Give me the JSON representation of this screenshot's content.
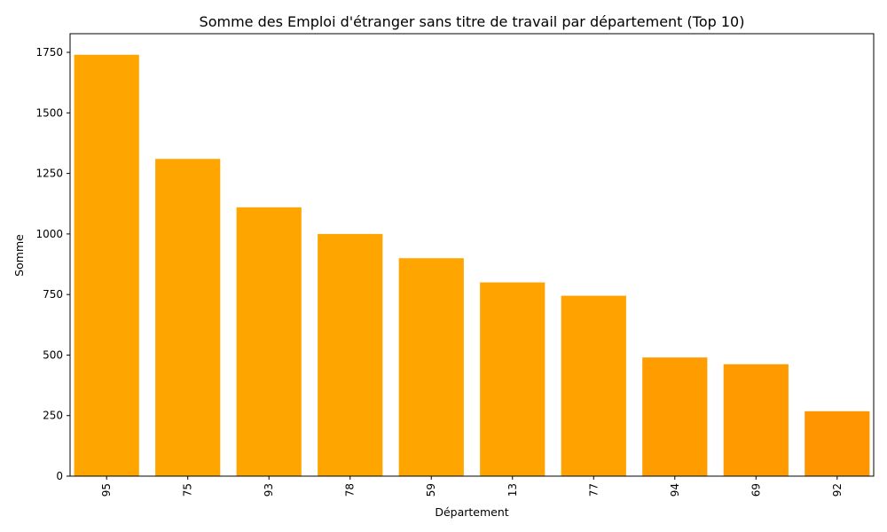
{
  "chart_data": {
    "type": "bar",
    "title": "Somme des Emploi d'étranger sans titre de travail par département (Top 10)",
    "xlabel": "Département",
    "ylabel": "Somme",
    "categories": [
      "95",
      "75",
      "93",
      "78",
      "59",
      "13",
      "77",
      "94",
      "69",
      "92"
    ],
    "values": [
      1740,
      1310,
      1110,
      1000,
      900,
      800,
      745,
      490,
      462,
      268
    ],
    "colors": [
      "#ffa500",
      "#ffa500",
      "#ffa500",
      "#ffa500",
      "#ffa500",
      "#ffa300",
      "#ffa200",
      "#ff9d00",
      "#ff9b00",
      "#ff9500"
    ],
    "yticks": [
      0,
      250,
      500,
      750,
      1000,
      1250,
      1500,
      1750
    ],
    "ytick_labels": [
      "0",
      "250",
      "500",
      "750",
      "1000",
      "1250",
      "1500",
      "1750"
    ],
    "ylim": [
      0,
      1827
    ],
    "grid": false,
    "legend": "none"
  }
}
